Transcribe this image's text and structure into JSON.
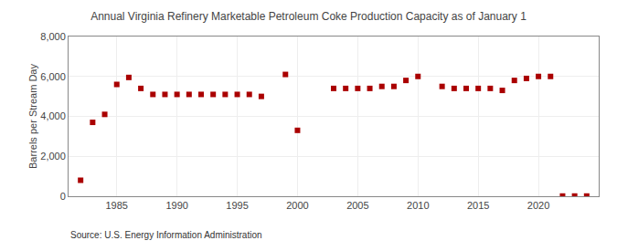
{
  "chart_data": {
    "type": "scatter",
    "title": "Annual Virginia Refinery Marketable Petroleum Coke Production Capacity as of January 1",
    "ylabel": "Barrels per Stream Day",
    "source": "Source: U.S. Energy Information Administration",
    "x": [
      1982,
      1983,
      1984,
      1985,
      1986,
      1987,
      1988,
      1989,
      1990,
      1991,
      1992,
      1993,
      1994,
      1995,
      1996,
      1997,
      1999,
      2000,
      2003,
      2004,
      2005,
      2006,
      2007,
      2008,
      2009,
      2010,
      2012,
      2013,
      2014,
      2015,
      2016,
      2017,
      2018,
      2019,
      2020,
      2021,
      2022,
      2023,
      2024
    ],
    "values": [
      800,
      3700,
      4100,
      5600,
      5950,
      5400,
      5100,
      5100,
      5100,
      5100,
      5100,
      5100,
      5100,
      5100,
      5100,
      5000,
      6100,
      3300,
      5400,
      5400,
      5400,
      5400,
      5500,
      5500,
      5800,
      6000,
      5500,
      5400,
      5400,
      5400,
      5400,
      5300,
      5800,
      5900,
      6000,
      6000,
      10,
      10,
      10
    ],
    "color": "#aa0000",
    "marker": "square",
    "xlim": [
      1981,
      2025
    ],
    "ylim": [
      0,
      8000
    ],
    "xticks": [
      1985,
      1990,
      1995,
      2000,
      2005,
      2010,
      2015,
      2020
    ],
    "yticks": [
      0,
      {
        "value": 2000,
        "label": "2,000"
      },
      {
        "value": 4000,
        "label": "4,000"
      },
      {
        "value": 6000,
        "label": "6,000"
      },
      {
        "value": 8000,
        "label": "8,000"
      }
    ],
    "grid": true
  }
}
